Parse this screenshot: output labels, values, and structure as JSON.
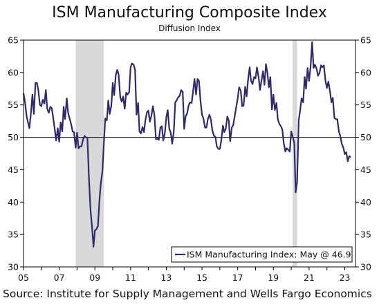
{
  "chart_data": {
    "type": "line",
    "title": "ISM Manufacturing Composite Index",
    "subtitle": "Diffusion Index",
    "source": "Source: Institute for Supply Management and Wells Fargo Economics",
    "x_tick_labels": [
      "05",
      "07",
      "09",
      "11",
      "13",
      "15",
      "17",
      "19",
      "21",
      "23"
    ],
    "x_tick_years": [
      2005,
      2007,
      2009,
      2011,
      2013,
      2015,
      2017,
      2019,
      2021,
      2023
    ],
    "xlim": [
      2005.0,
      2023.6
    ],
    "ylim": [
      30,
      65
    ],
    "y_ticks": [
      30,
      35,
      40,
      45,
      50,
      55,
      60,
      65
    ],
    "reference_line": 50,
    "recessions": [
      [
        2007.92,
        2009.5
      ],
      [
        2020.08,
        2020.33
      ]
    ],
    "legend": {
      "label": "ISM Manufacturing Index: May @ 46.9",
      "position": "bottom-right"
    },
    "colors": {
      "line": "#2e2a6b",
      "recession": "#d9d9d9",
      "axis": "#000000"
    },
    "series": [
      {
        "name": "ISM Manufacturing Index",
        "points": [
          [
            2005.0,
            56.8
          ],
          [
            2005.08,
            55.5
          ],
          [
            2005.17,
            53.3
          ],
          [
            2005.25,
            52.3
          ],
          [
            2005.33,
            51.4
          ],
          [
            2005.42,
            53.8
          ],
          [
            2005.5,
            56.6
          ],
          [
            2005.58,
            53.6
          ],
          [
            2005.67,
            58.4
          ],
          [
            2005.75,
            58.4
          ],
          [
            2005.83,
            57.3
          ],
          [
            2005.92,
            55.0
          ],
          [
            2006.0,
            54.8
          ],
          [
            2006.08,
            55.8
          ],
          [
            2006.17,
            55.2
          ],
          [
            2006.25,
            57.3
          ],
          [
            2006.33,
            54.4
          ],
          [
            2006.42,
            53.8
          ],
          [
            2006.5,
            54.7
          ],
          [
            2006.58,
            54.5
          ],
          [
            2006.67,
            52.9
          ],
          [
            2006.75,
            51.2
          ],
          [
            2006.83,
            49.5
          ],
          [
            2006.92,
            51.4
          ],
          [
            2007.0,
            49.3
          ],
          [
            2007.08,
            52.3
          ],
          [
            2007.17,
            50.9
          ],
          [
            2007.25,
            54.7
          ],
          [
            2007.33,
            52.8
          ],
          [
            2007.42,
            56.0
          ],
          [
            2007.5,
            53.8
          ],
          [
            2007.58,
            52.9
          ],
          [
            2007.67,
            52.0
          ],
          [
            2007.75,
            50.9
          ],
          [
            2007.83,
            50.8
          ],
          [
            2007.92,
            48.4
          ],
          [
            2008.0,
            50.7
          ],
          [
            2008.08,
            48.3
          ],
          [
            2008.17,
            48.6
          ],
          [
            2008.25,
            48.6
          ],
          [
            2008.33,
            49.6
          ],
          [
            2008.42,
            50.2
          ],
          [
            2008.5,
            50.0
          ],
          [
            2008.58,
            49.9
          ],
          [
            2008.67,
            43.5
          ],
          [
            2008.75,
            38.9
          ],
          [
            2008.83,
            36.5
          ],
          [
            2008.92,
            33.1
          ],
          [
            2009.0,
            35.6
          ],
          [
            2009.08,
            35.8
          ],
          [
            2009.17,
            36.3
          ],
          [
            2009.25,
            40.1
          ],
          [
            2009.33,
            42.8
          ],
          [
            2009.42,
            44.8
          ],
          [
            2009.5,
            48.9
          ],
          [
            2009.58,
            52.9
          ],
          [
            2009.67,
            52.6
          ],
          [
            2009.75,
            55.7
          ],
          [
            2009.83,
            53.6
          ],
          [
            2009.92,
            54.9
          ],
          [
            2010.0,
            58.4
          ],
          [
            2010.08,
            56.5
          ],
          [
            2010.17,
            59.6
          ],
          [
            2010.25,
            60.4
          ],
          [
            2010.33,
            59.7
          ],
          [
            2010.42,
            56.2
          ],
          [
            2010.5,
            55.5
          ],
          [
            2010.58,
            56.3
          ],
          [
            2010.67,
            54.4
          ],
          [
            2010.75,
            56.9
          ],
          [
            2010.83,
            56.6
          ],
          [
            2010.92,
            57.0
          ],
          [
            2011.0,
            60.8
          ],
          [
            2011.08,
            61.4
          ],
          [
            2011.17,
            61.2
          ],
          [
            2011.25,
            60.4
          ],
          [
            2011.33,
            53.5
          ],
          [
            2011.42,
            55.3
          ],
          [
            2011.5,
            50.9
          ],
          [
            2011.58,
            50.6
          ],
          [
            2011.67,
            51.6
          ],
          [
            2011.75,
            50.8
          ],
          [
            2011.83,
            52.7
          ],
          [
            2011.92,
            53.9
          ],
          [
            2012.0,
            54.1
          ],
          [
            2012.08,
            52.4
          ],
          [
            2012.17,
            53.4
          ],
          [
            2012.25,
            54.8
          ],
          [
            2012.33,
            53.5
          ],
          [
            2012.42,
            49.7
          ],
          [
            2012.5,
            49.8
          ],
          [
            2012.58,
            49.6
          ],
          [
            2012.67,
            51.5
          ],
          [
            2012.75,
            51.7
          ],
          [
            2012.83,
            49.5
          ],
          [
            2012.92,
            50.7
          ],
          [
            2013.0,
            53.1
          ],
          [
            2013.08,
            54.2
          ],
          [
            2013.17,
            51.3
          ],
          [
            2013.25,
            50.7
          ],
          [
            2013.33,
            49.0
          ],
          [
            2013.42,
            50.9
          ],
          [
            2013.5,
            55.4
          ],
          [
            2013.58,
            55.7
          ],
          [
            2013.67,
            56.2
          ],
          [
            2013.75,
            56.4
          ],
          [
            2013.83,
            57.3
          ],
          [
            2013.92,
            57.0
          ],
          [
            2014.0,
            51.3
          ],
          [
            2014.08,
            53.2
          ],
          [
            2014.17,
            53.7
          ],
          [
            2014.25,
            54.9
          ],
          [
            2014.33,
            55.4
          ],
          [
            2014.42,
            55.3
          ],
          [
            2014.5,
            57.1
          ],
          [
            2014.58,
            59.0
          ],
          [
            2014.67,
            56.6
          ],
          [
            2014.75,
            59.0
          ],
          [
            2014.83,
            58.7
          ],
          [
            2014.92,
            55.5
          ],
          [
            2015.0,
            53.5
          ],
          [
            2015.08,
            52.9
          ],
          [
            2015.17,
            51.5
          ],
          [
            2015.25,
            51.5
          ],
          [
            2015.33,
            52.8
          ],
          [
            2015.42,
            53.5
          ],
          [
            2015.5,
            52.7
          ],
          [
            2015.58,
            51.1
          ],
          [
            2015.67,
            50.2
          ],
          [
            2015.75,
            50.1
          ],
          [
            2015.83,
            48.6
          ],
          [
            2015.92,
            48.2
          ],
          [
            2016.0,
            48.2
          ],
          [
            2016.08,
            49.5
          ],
          [
            2016.17,
            51.8
          ],
          [
            2016.25,
            50.8
          ],
          [
            2016.33,
            51.3
          ],
          [
            2016.42,
            53.2
          ],
          [
            2016.5,
            52.6
          ],
          [
            2016.58,
            49.4
          ],
          [
            2016.67,
            51.5
          ],
          [
            2016.75,
            51.9
          ],
          [
            2016.83,
            53.2
          ],
          [
            2016.92,
            54.7
          ],
          [
            2017.0,
            56.0
          ],
          [
            2017.08,
            57.7
          ],
          [
            2017.17,
            57.2
          ],
          [
            2017.25,
            54.8
          ],
          [
            2017.33,
            54.9
          ],
          [
            2017.42,
            57.8
          ],
          [
            2017.5,
            56.3
          ],
          [
            2017.58,
            58.8
          ],
          [
            2017.67,
            60.8
          ],
          [
            2017.75,
            58.7
          ],
          [
            2017.83,
            58.2
          ],
          [
            2017.92,
            59.3
          ],
          [
            2018.0,
            59.1
          ],
          [
            2018.08,
            60.8
          ],
          [
            2018.17,
            59.3
          ],
          [
            2018.25,
            57.3
          ],
          [
            2018.33,
            58.7
          ],
          [
            2018.42,
            60.2
          ],
          [
            2018.5,
            58.1
          ],
          [
            2018.58,
            61.3
          ],
          [
            2018.67,
            59.8
          ],
          [
            2018.75,
            57.7
          ],
          [
            2018.83,
            59.3
          ],
          [
            2018.92,
            54.3
          ],
          [
            2019.0,
            56.6
          ],
          [
            2019.08,
            54.2
          ],
          [
            2019.17,
            55.3
          ],
          [
            2019.25,
            52.8
          ],
          [
            2019.33,
            52.1
          ],
          [
            2019.42,
            51.7
          ],
          [
            2019.5,
            51.2
          ],
          [
            2019.58,
            49.1
          ],
          [
            2019.67,
            47.8
          ],
          [
            2019.75,
            48.3
          ],
          [
            2019.83,
            48.1
          ],
          [
            2019.92,
            47.8
          ],
          [
            2020.0,
            50.9
          ],
          [
            2020.08,
            50.1
          ],
          [
            2020.17,
            49.1
          ],
          [
            2020.25,
            41.5
          ],
          [
            2020.33,
            43.1
          ],
          [
            2020.42,
            52.6
          ],
          [
            2020.5,
            54.2
          ],
          [
            2020.58,
            56.0
          ],
          [
            2020.67,
            55.4
          ],
          [
            2020.75,
            59.3
          ],
          [
            2020.83,
            57.5
          ],
          [
            2020.92,
            60.7
          ],
          [
            2021.0,
            58.7
          ],
          [
            2021.08,
            60.8
          ],
          [
            2021.17,
            64.7
          ],
          [
            2021.25,
            60.7
          ],
          [
            2021.33,
            61.2
          ],
          [
            2021.42,
            60.6
          ],
          [
            2021.5,
            59.5
          ],
          [
            2021.58,
            59.9
          ],
          [
            2021.67,
            61.1
          ],
          [
            2021.75,
            60.8
          ],
          [
            2021.83,
            61.1
          ],
          [
            2021.92,
            58.7
          ],
          [
            2022.0,
            57.6
          ],
          [
            2022.08,
            58.6
          ],
          [
            2022.17,
            57.1
          ],
          [
            2022.25,
            55.4
          ],
          [
            2022.33,
            56.1
          ],
          [
            2022.42,
            53.0
          ],
          [
            2022.5,
            52.8
          ],
          [
            2022.58,
            52.8
          ],
          [
            2022.67,
            50.9
          ],
          [
            2022.75,
            50.2
          ],
          [
            2022.83,
            49.0
          ],
          [
            2022.92,
            48.4
          ],
          [
            2023.0,
            47.4
          ],
          [
            2023.08,
            47.7
          ],
          [
            2023.17,
            46.3
          ],
          [
            2023.25,
            47.1
          ],
          [
            2023.33,
            46.9
          ]
        ]
      }
    ]
  }
}
